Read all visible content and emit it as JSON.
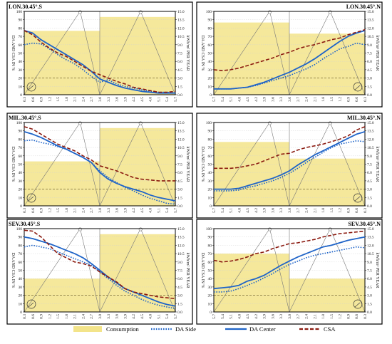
{
  "x_ticks": [
    "0.3",
    "0.6",
    "0.9",
    "1.2",
    "1.5",
    "1.8",
    "2.1",
    "2.4",
    "2.7",
    "3.0",
    "3.3",
    "3.6",
    "3.9",
    "4.2",
    "4.5",
    "4.8",
    "5.1",
    "5.4",
    "5.7"
  ],
  "y_left_ticks": [
    "0",
    "10",
    "20",
    "30",
    "40",
    "50",
    "60",
    "70",
    "80",
    "90",
    "100"
  ],
  "y_right_ticks": [
    "0.0",
    "1.5",
    "3.0",
    "4.5",
    "6.0",
    "7.5",
    "9.0",
    "10.5",
    "12.0",
    "13.5",
    "15.0"
  ],
  "left_axis_label": "DA AND CSA IN %",
  "right_axis_label": "kWh/m² PER YEAR",
  "legend": [
    {
      "key": "consumption",
      "label": "Consumption",
      "color": "#f3e48a",
      "style": "fill"
    },
    {
      "key": "da_side",
      "label": "DA Side",
      "color": "#1f64c8",
      "style": "dotted"
    },
    {
      "key": "da_center",
      "label": "DA Center",
      "color": "#1f64c8",
      "style": "solid"
    },
    {
      "key": "csa",
      "label": "CSA",
      "color": "#8b1a10",
      "style": "dashed"
    }
  ],
  "colors": {
    "da": "#1f64c8",
    "csa": "#8b1a10",
    "consumption": "#f3e48a",
    "threshold": "#7a6a30",
    "room": "#777777"
  },
  "chart_data": [
    {
      "type": "line",
      "title": "LON.30.45°.S",
      "side": "left",
      "reversed": false,
      "x": [
        0.3,
        0.6,
        0.9,
        1.2,
        1.5,
        1.8,
        2.1,
        2.4,
        2.7,
        3.0,
        3.3,
        3.6,
        3.9,
        4.2,
        4.5,
        4.8,
        5.1,
        5.4,
        5.7
      ],
      "ylim": [
        0,
        100
      ],
      "y2lim": [
        0,
        15
      ],
      "consumption": [
        {
          "from": 0.3,
          "to": 3.0,
          "value": 11.5
        },
        {
          "from": 3.0,
          "to": 5.7,
          "value": 14.0
        }
      ],
      "threshold": 20,
      "series": [
        {
          "name": "DA Side",
          "values": [
            60,
            62,
            61,
            55,
            48,
            42,
            37,
            30,
            22,
            15,
            18,
            13,
            10,
            8,
            6,
            4,
            3,
            3,
            2
          ]
        },
        {
          "name": "DA Center",
          "values": [
            77,
            74,
            66,
            60,
            54,
            48,
            42,
            36,
            28,
            19,
            15,
            11,
            8,
            6,
            4,
            3,
            2,
            2,
            2
          ]
        },
        {
          "name": "CSA",
          "values": [
            77,
            72,
            63,
            56,
            50,
            46,
            40,
            34,
            28,
            24,
            20,
            16,
            13,
            9,
            7,
            5,
            3,
            3,
            4
          ]
        }
      ]
    },
    {
      "type": "line",
      "title": "LON.30.45°.N",
      "side": "right",
      "reversed": true,
      "x": [
        5.7,
        5.4,
        5.1,
        4.8,
        4.5,
        4.2,
        3.9,
        3.6,
        3.3,
        3.0,
        2.7,
        2.4,
        2.1,
        1.8,
        1.5,
        1.2,
        0.9,
        0.6,
        0.3
      ],
      "ylim": [
        0,
        100
      ],
      "y2lim": [
        0,
        15
      ],
      "consumption": [
        {
          "from": 5.7,
          "to": 3.0,
          "value": 13.0
        },
        {
          "from": 3.0,
          "to": 0.3,
          "value": 11.0
        }
      ],
      "threshold": 20,
      "series": [
        {
          "name": "DA Side",
          "values": [
            7,
            7,
            7,
            8,
            9,
            11,
            14,
            17,
            20,
            23,
            27,
            31,
            36,
            43,
            49,
            55,
            58,
            62,
            60
          ]
        },
        {
          "name": "DA Center",
          "values": [
            7,
            7,
            7,
            8,
            9,
            12,
            15,
            19,
            23,
            27,
            32,
            37,
            43,
            50,
            57,
            64,
            70,
            74,
            77
          ]
        },
        {
          "name": "CSA",
          "values": [
            30,
            29,
            30,
            32,
            35,
            38,
            41,
            44,
            48,
            51,
            55,
            58,
            60,
            63,
            66,
            68,
            72,
            75,
            78
          ]
        }
      ]
    },
    {
      "type": "line",
      "title": "MIL.30.45°.S",
      "side": "left",
      "reversed": false,
      "x": [
        0.3,
        0.6,
        0.9,
        1.2,
        1.5,
        1.8,
        2.1,
        2.4,
        2.7,
        3.0,
        3.3,
        3.6,
        3.9,
        4.2,
        4.5,
        4.8,
        5.1,
        5.4,
        5.7
      ],
      "ylim": [
        0,
        100
      ],
      "y2lim": [
        0,
        15
      ],
      "consumption": [
        {
          "from": 0.3,
          "to": 3.0,
          "value": 8.0
        },
        {
          "from": 3.0,
          "to": 5.7,
          "value": 14.0
        }
      ],
      "threshold": 20,
      "series": [
        {
          "name": "DA Side",
          "values": [
            78,
            79,
            76,
            74,
            71,
            68,
            63,
            58,
            52,
            42,
            34,
            28,
            22,
            18,
            13,
            9,
            6,
            3,
            2
          ]
        },
        {
          "name": "DA Center",
          "values": [
            89,
            86,
            82,
            77,
            72,
            68,
            63,
            58,
            52,
            40,
            32,
            27,
            23,
            20,
            17,
            13,
            10,
            8,
            6
          ]
        },
        {
          "name": "CSA",
          "values": [
            95,
            92,
            86,
            80,
            74,
            70,
            66,
            60,
            55,
            48,
            45,
            42,
            38,
            34,
            32,
            31,
            30,
            30,
            30
          ]
        }
      ]
    },
    {
      "type": "line",
      "title": "MIL.30.45°.N",
      "side": "right",
      "reversed": true,
      "x": [
        5.7,
        5.4,
        5.1,
        4.8,
        4.5,
        4.2,
        3.9,
        3.6,
        3.3,
        3.0,
        2.7,
        2.4,
        2.1,
        1.8,
        1.5,
        1.2,
        0.9,
        0.6,
        0.3
      ],
      "ylim": [
        0,
        100
      ],
      "y2lim": [
        0,
        15
      ],
      "consumption": [
        {
          "from": 5.7,
          "to": 3.0,
          "value": 11.5
        },
        {
          "from": 3.0,
          "to": 0.3,
          "value": 8.5
        }
      ],
      "threshold": 20,
      "series": [
        {
          "name": "DA Side",
          "values": [
            18,
            18,
            18,
            19,
            22,
            24,
            27,
            30,
            34,
            39,
            45,
            52,
            58,
            64,
            70,
            74,
            76,
            78,
            77
          ]
        },
        {
          "name": "DA Center",
          "values": [
            20,
            20,
            20,
            21,
            24,
            27,
            30,
            33,
            37,
            42,
            49,
            55,
            61,
            66,
            71,
            76,
            81,
            86,
            89
          ]
        },
        {
          "name": "CSA",
          "values": [
            45,
            45,
            45,
            46,
            48,
            50,
            54,
            58,
            62,
            63,
            67,
            70,
            72,
            74,
            77,
            80,
            84,
            91,
            95
          ]
        }
      ]
    },
    {
      "type": "line",
      "title": "SEV.30.45°.S",
      "side": "left",
      "reversed": false,
      "x": [
        0.3,
        0.6,
        0.9,
        1.2,
        1.5,
        1.8,
        2.1,
        2.4,
        2.7,
        3.0,
        3.3,
        3.6,
        3.9,
        4.2,
        4.5,
        4.8,
        5.1,
        5.4,
        5.7
      ],
      "ylim": [
        0,
        100
      ],
      "y2lim": [
        0,
        15
      ],
      "consumption": [
        {
          "from": 0.3,
          "to": 3.0,
          "value": 6.0
        },
        {
          "from": 3.0,
          "to": 5.7,
          "value": 14.0
        }
      ],
      "threshold": 20,
      "series": [
        {
          "name": "DA Side",
          "values": [
            78,
            80,
            78,
            76,
            72,
            68,
            64,
            60,
            56,
            48,
            40,
            32,
            25,
            20,
            15,
            11,
            8,
            6,
            4
          ]
        },
        {
          "name": "DA Center",
          "values": [
            90,
            88,
            85,
            82,
            78,
            74,
            70,
            65,
            58,
            50,
            42,
            35,
            28,
            24,
            20,
            16,
            12,
            9,
            7
          ]
        },
        {
          "name": "CSA",
          "values": [
            98,
            97,
            90,
            80,
            70,
            65,
            60,
            58,
            55,
            48,
            42,
            36,
            28,
            24,
            22,
            20,
            18,
            17,
            16
          ]
        }
      ]
    },
    {
      "type": "line",
      "title": "SEV.30.45°.N",
      "side": "right",
      "reversed": true,
      "x": [
        5.7,
        5.4,
        5.1,
        4.8,
        4.5,
        4.2,
        3.9,
        3.6,
        3.3,
        3.0,
        2.7,
        2.4,
        2.1,
        1.8,
        1.5,
        1.2,
        0.9,
        0.6,
        0.3
      ],
      "ylim": [
        0,
        100
      ],
      "y2lim": [
        0,
        15
      ],
      "consumption": [
        {
          "from": 5.7,
          "to": 3.0,
          "value": 10.5
        },
        {
          "from": 3.0,
          "to": 0.3,
          "value": 6.0
        }
      ],
      "threshold": 20,
      "series": [
        {
          "name": "DA Side",
          "values": [
            24,
            24,
            25,
            28,
            32,
            36,
            41,
            46,
            52,
            57,
            61,
            65,
            68,
            70,
            72,
            74,
            76,
            78,
            77
          ]
        },
        {
          "name": "DA Center",
          "values": [
            28,
            29,
            30,
            32,
            37,
            40,
            44,
            50,
            56,
            61,
            66,
            70,
            74,
            78,
            80,
            83,
            86,
            88,
            90
          ]
        },
        {
          "name": "CSA",
          "values": [
            62,
            60,
            61,
            63,
            66,
            70,
            72,
            76,
            79,
            82,
            83,
            85,
            87,
            90,
            92,
            94,
            95,
            96,
            97
          ]
        }
      ]
    }
  ]
}
